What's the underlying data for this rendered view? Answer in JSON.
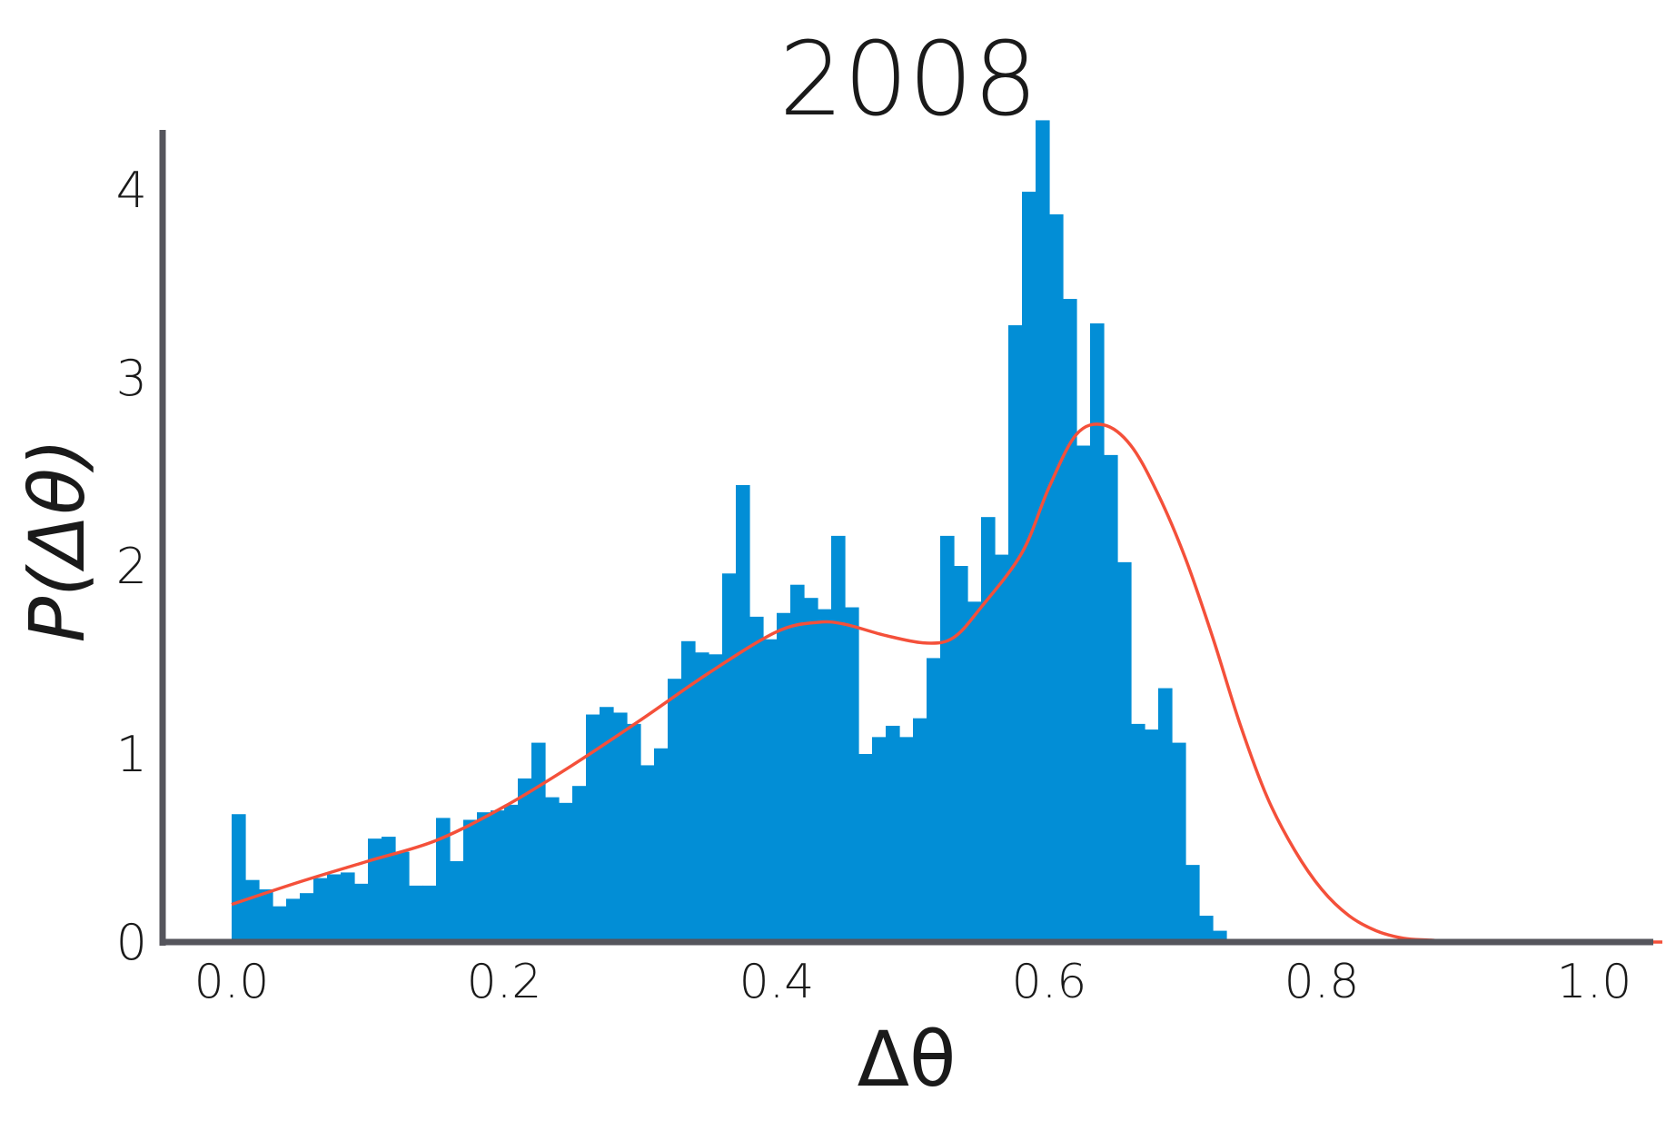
{
  "chart_data": {
    "type": "bar",
    "title": "2008",
    "xlabel": "Δθ",
    "ylabel": "P(Δθ)",
    "xlim": [
      -0.05,
      1.05
    ],
    "ylim": [
      0,
      4.35
    ],
    "x_ticks": [
      "0.0",
      "0.2",
      "0.4",
      "0.6",
      "0.8",
      "1.0"
    ],
    "y_ticks": [
      "0",
      "1",
      "2",
      "3",
      "4"
    ],
    "x_tick_values": [
      0.0,
      0.2,
      0.4,
      0.6,
      0.8,
      1.0
    ],
    "y_tick_values": [
      0,
      1,
      2,
      3,
      4
    ],
    "bin_width": 0.01,
    "bin_start": 0.0,
    "series": [
      {
        "kind": "histogram",
        "color": "#028ed6",
        "values": [
          0.68,
          0.33,
          0.28,
          0.19,
          0.23,
          0.26,
          0.34,
          0.36,
          0.37,
          0.31,
          0.55,
          0.56,
          0.48,
          0.3,
          0.3,
          0.66,
          0.43,
          0.65,
          0.69,
          0.7,
          0.73,
          0.87,
          1.06,
          0.77,
          0.74,
          0.83,
          1.21,
          1.25,
          1.22,
          1.16,
          0.94,
          1.03,
          1.4,
          1.6,
          1.54,
          1.53,
          1.96,
          2.43,
          1.73,
          1.61,
          1.75,
          1.9,
          1.83,
          1.77,
          2.16,
          1.78,
          1.0,
          1.09,
          1.15,
          1.09,
          1.19,
          1.51,
          2.16,
          2.0,
          1.81,
          2.26,
          2.06,
          3.28,
          3.99,
          4.37,
          3.87,
          3.42,
          2.64,
          3.29,
          2.59,
          2.02,
          1.16,
          1.13,
          1.35,
          1.06,
          0.41,
          0.14,
          0.06
        ]
      },
      {
        "kind": "density-line",
        "color": "#f4503a",
        "x": [
          0.0,
          0.05,
          0.1,
          0.15,
          0.2,
          0.25,
          0.3,
          0.35,
          0.4,
          0.43,
          0.45,
          0.48,
          0.51,
          0.53,
          0.55,
          0.58,
          0.6,
          0.62,
          0.64,
          0.66,
          0.68,
          0.7,
          0.72,
          0.74,
          0.76,
          0.78,
          0.8,
          0.82,
          0.84,
          0.86,
          0.88,
          0.9,
          0.95,
          1.0,
          1.05
        ],
        "y": [
          0.2,
          0.32,
          0.43,
          0.54,
          0.72,
          0.94,
          1.18,
          1.43,
          1.65,
          1.7,
          1.69,
          1.63,
          1.59,
          1.62,
          1.78,
          2.07,
          2.42,
          2.7,
          2.75,
          2.64,
          2.38,
          2.04,
          1.62,
          1.16,
          0.77,
          0.49,
          0.28,
          0.14,
          0.06,
          0.02,
          0.01,
          0.0,
          0.0,
          0.0,
          0.0
        ]
      }
    ]
  },
  "colors": {
    "bar": "#028ed6",
    "line": "#f4503a",
    "axis": "#55555c",
    "text": "#1a1a1a"
  }
}
